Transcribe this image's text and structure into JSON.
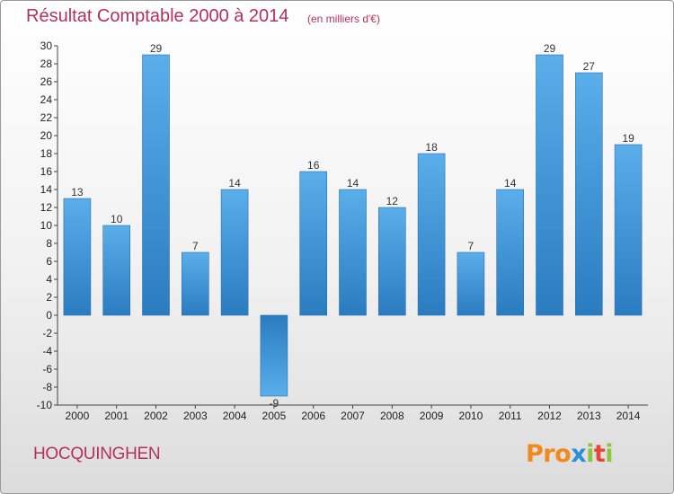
{
  "header": {
    "title": "Résultat Comptable 2000 à 2014",
    "subtitle": "(en milliers d'€)"
  },
  "footer": {
    "commune": "HOCQUINGHEN",
    "logo_letters": [
      "P",
      "r",
      "o",
      "x",
      "i",
      "t",
      "i"
    ]
  },
  "colors": {
    "title": "#b5305c",
    "bar_top": "#5aaeea",
    "bar_bottom": "#2a7cc0",
    "logo": [
      "#f08a1c",
      "#f08a1c",
      "#f08a1c",
      "#2a8fd8",
      "#8cc63f",
      "#e8463c",
      "#8cc63f"
    ]
  },
  "chart_data": {
    "type": "bar",
    "title": "Résultat Comptable 2000 à 2014",
    "subtitle": "(en milliers d'€)",
    "categories": [
      "2000",
      "2001",
      "2002",
      "2003",
      "2004",
      "2005",
      "2006",
      "2007",
      "2008",
      "2009",
      "2010",
      "2011",
      "2012",
      "2013",
      "2014"
    ],
    "values": [
      13,
      10,
      29,
      7,
      14,
      -9,
      16,
      14,
      12,
      18,
      7,
      14,
      29,
      27,
      19
    ],
    "ylim": [
      -10,
      30
    ],
    "yticks": [
      30,
      28,
      26,
      24,
      22,
      20,
      18,
      16,
      14,
      12,
      10,
      8,
      6,
      4,
      2,
      0,
      -2,
      -4,
      -6,
      -8,
      -10
    ],
    "grid": false
  }
}
